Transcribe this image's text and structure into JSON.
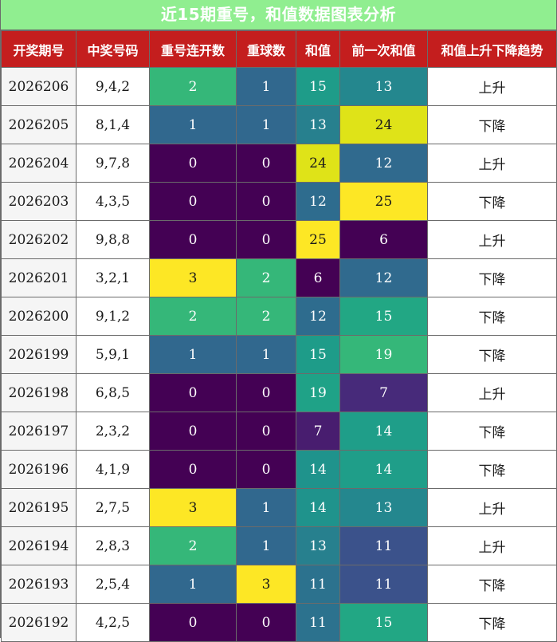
{
  "title": "近15期重号，和值数据图表分析",
  "headers": [
    "开奖期号",
    "中奖号码",
    "重号连开数",
    "重球数",
    "和值",
    "前一次和值",
    "和值上升下降趋势"
  ],
  "rows": [
    {
      "period": "2026206",
      "numbers": "9,4,2",
      "repeat_streak": "2",
      "repeat_balls": "1",
      "sum": "15",
      "prev_sum": "13",
      "trend": "上升"
    },
    {
      "period": "2026205",
      "numbers": "8,1,4",
      "repeat_streak": "1",
      "repeat_balls": "1",
      "sum": "13",
      "prev_sum": "24",
      "trend": "下降"
    },
    {
      "period": "2026204",
      "numbers": "9,7,8",
      "repeat_streak": "0",
      "repeat_balls": "0",
      "sum": "24",
      "prev_sum": "12",
      "trend": "上升"
    },
    {
      "period": "2026203",
      "numbers": "4,3,5",
      "repeat_streak": "0",
      "repeat_balls": "0",
      "sum": "12",
      "prev_sum": "25",
      "trend": "下降"
    },
    {
      "period": "2026202",
      "numbers": "9,8,8",
      "repeat_streak": "0",
      "repeat_balls": "0",
      "sum": "25",
      "prev_sum": "6",
      "trend": "上升"
    },
    {
      "period": "2026201",
      "numbers": "3,2,1",
      "repeat_streak": "3",
      "repeat_balls": "2",
      "sum": "6",
      "prev_sum": "12",
      "trend": "下降"
    },
    {
      "period": "2026200",
      "numbers": "9,1,2",
      "repeat_streak": "2",
      "repeat_balls": "2",
      "sum": "12",
      "prev_sum": "15",
      "trend": "下降"
    },
    {
      "period": "2026199",
      "numbers": "5,9,1",
      "repeat_streak": "1",
      "repeat_balls": "1",
      "sum": "15",
      "prev_sum": "19",
      "trend": "下降"
    },
    {
      "period": "2026198",
      "numbers": "6,8,5",
      "repeat_streak": "0",
      "repeat_balls": "0",
      "sum": "19",
      "prev_sum": "7",
      "trend": "上升"
    },
    {
      "period": "2026197",
      "numbers": "2,3,2",
      "repeat_streak": "0",
      "repeat_balls": "0",
      "sum": "7",
      "prev_sum": "14",
      "trend": "下降"
    },
    {
      "period": "2026196",
      "numbers": "4,1,9",
      "repeat_streak": "0",
      "repeat_balls": "0",
      "sum": "14",
      "prev_sum": "14",
      "trend": "下降"
    },
    {
      "period": "2026195",
      "numbers": "2,7,5",
      "repeat_streak": "3",
      "repeat_balls": "1",
      "sum": "14",
      "prev_sum": "13",
      "trend": "上升"
    },
    {
      "period": "2026194",
      "numbers": "2,8,3",
      "repeat_streak": "2",
      "repeat_balls": "1",
      "sum": "13",
      "prev_sum": "11",
      "trend": "上升"
    },
    {
      "period": "2026193",
      "numbers": "2,5,4",
      "repeat_streak": "1",
      "repeat_balls": "3",
      "sum": "11",
      "prev_sum": "11",
      "trend": "下降"
    },
    {
      "period": "2026192",
      "numbers": "4,2,5",
      "repeat_streak": "0",
      "repeat_balls": "0",
      "sum": "11",
      "prev_sum": "15",
      "trend": "下降"
    }
  ],
  "colors": {
    "title_bg": "#90ee90",
    "header_bg": "#c41e1e",
    "streak": {
      "0": "#440154",
      "1": "#31688e",
      "2": "#35b779",
      "3": "#fde725"
    },
    "balls": {
      "0": "#440154",
      "1": "#31688e",
      "2": "#35b779",
      "3": "#fde725"
    },
    "sum": {
      "6": "#440154",
      "7": "#481d6f",
      "11": "#2c728e",
      "12": "#2e6c8e",
      "13": "#27808e",
      "14": "#1f938c",
      "15": "#1e9c89",
      "19": "#1fa287",
      "24": "#dfe318",
      "25": "#fde725"
    },
    "prev_sum": {
      "6": "#440154",
      "7": "#472a7a",
      "11": "#3b528b",
      "12": "#306a8e",
      "13": "#24878e",
      "14": "#1f9e89",
      "15": "#22a784",
      "19": "#35b779",
      "24": "#dfe318",
      "25": "#fde725"
    },
    "dark_text_values": [
      "3",
      "24",
      "25"
    ]
  }
}
